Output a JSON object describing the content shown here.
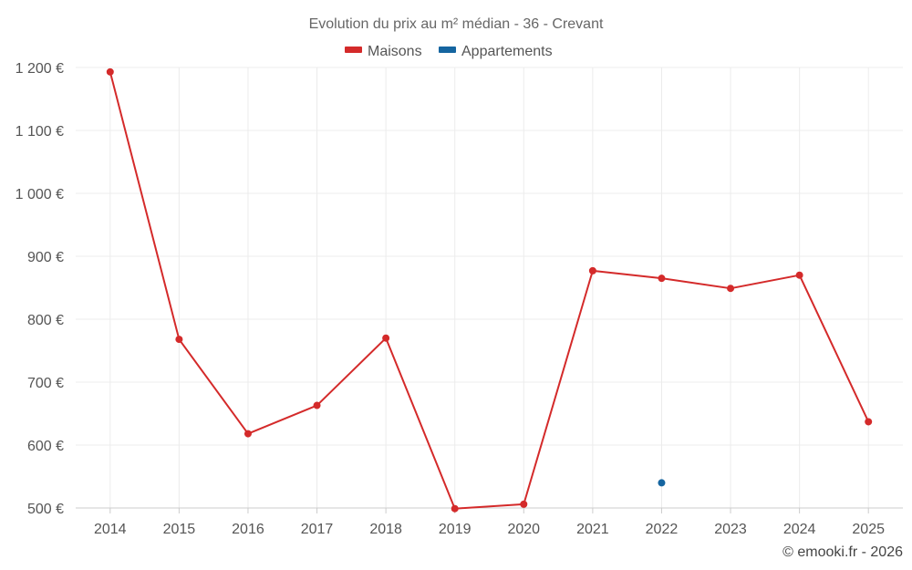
{
  "chart_data": {
    "type": "line",
    "title": "Evolution du prix au m² médian - 36 - Crevant",
    "categories": [
      "2014",
      "2015",
      "2016",
      "2017",
      "2018",
      "2019",
      "2020",
      "2021",
      "2022",
      "2023",
      "2024",
      "2025"
    ],
    "ylim": [
      500,
      1200
    ],
    "yticks": [
      500,
      600,
      700,
      800,
      900,
      1000,
      1100,
      1200
    ],
    "ytick_labels": [
      "500 €",
      "600 €",
      "700 €",
      "800 €",
      "900 €",
      "1 000 €",
      "1 100 €",
      "1 200 €"
    ],
    "grid": true,
    "legend_position": "top-center",
    "series": [
      {
        "name": "Maisons",
        "color": "#d42a2a",
        "values": [
          1193,
          768,
          618,
          663,
          770,
          499,
          506,
          877,
          865,
          849,
          870,
          637
        ]
      },
      {
        "name": "Appartements",
        "color": "#1565a0",
        "values": [
          null,
          null,
          null,
          null,
          null,
          null,
          null,
          null,
          540,
          null,
          null,
          null
        ]
      }
    ]
  },
  "credit": "© emooki.fr - 2026"
}
